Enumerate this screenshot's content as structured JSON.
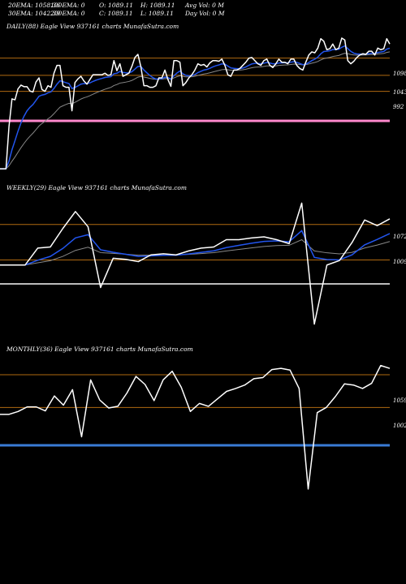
{
  "header": {
    "row1": [
      "20EMA: 1058.36",
      "100EMA: 0",
      "O: 1089.11",
      "H: 1089.11",
      "Avg Vol: 0  M"
    ],
    "row2": [
      "30EMA: 1042.39",
      "200EMA: 0",
      "C: 1089.11",
      "L: 1089.11",
      "Day Vol: 0  M"
    ]
  },
  "colors": {
    "background": "#000000",
    "price": "#ffffff",
    "ema_fast": "#2255ee",
    "ema_slow": "#888888",
    "level_line": "#b06a10",
    "daily_pink": "#ff88cc",
    "weekly_gray": "#bbbbbb",
    "monthly_blue": "#3a7bd5"
  },
  "chart_data": [
    {
      "type": "line",
      "title": "DAILY(88) Eagle  View  937161 charts MunafaSutra.com",
      "levels": [
        {
          "label": "1098",
          "value": 1098
        },
        {
          "label": "1043",
          "value": 1043
        },
        {
          "label": "992",
          "value": 992
        }
      ],
      "series": [
        {
          "role": "price",
          "values": [
            745,
            745,
            745,
            880,
            968,
            965,
            1000,
            1012,
            1007,
            1007,
            993,
            990,
            1022,
            1035,
            998,
            992,
            1010,
            1005,
            1050,
            1075,
            1075,
            1010,
            1005,
            1005,
            930,
            1020,
            1032,
            1040,
            1025,
            1015,
            1030,
            1045,
            1045,
            1045,
            1045,
            1050,
            1043,
            1045,
            1090,
            1058,
            1080,
            1040,
            1045,
            1050,
            1072,
            1100,
            1110,
            1070,
            1010,
            1010,
            1005,
            1005,
            1010,
            1035,
            1035,
            1060,
            1030,
            1008,
            1090,
            1090,
            1085,
            1010,
            1020,
            1035,
            1045,
            1060,
            1080,
            1075,
            1078,
            1070,
            1083,
            1090,
            1090,
            1088,
            1095,
            1075,
            1045,
            1040,
            1060,
            1060,
            1065,
            1075,
            1085,
            1098,
            1100,
            1090,
            1080,
            1075,
            1090,
            1095,
            1075,
            1068,
            1080,
            1095,
            1085,
            1085,
            1080,
            1095,
            1095,
            1075,
            1065,
            1060,
            1085,
            1108,
            1118,
            1115,
            1130,
            1160,
            1152,
            1125,
            1128,
            1143,
            1125,
            1130,
            1162,
            1156,
            1090,
            1080,
            1088,
            1100,
            1108,
            1112,
            1110,
            1120,
            1120,
            1108,
            1130,
            1125,
            1128,
            1160,
            1143
          ]
        }
      ]
    },
    {
      "type": "line",
      "title": "WEEKLY(29) Eagle  View  937161 charts MunafaSutra.com",
      "levels": [
        {
          "label": "1072",
          "value": 1072
        },
        {
          "label": "1009",
          "value": 1009
        }
      ],
      "series": [
        {
          "role": "price",
          "values": [
            1000,
            1000,
            1000,
            1030,
            1032,
            1065,
            1095,
            1068,
            960,
            1012,
            1010,
            1006,
            1018,
            1020,
            1018,
            1025,
            1030,
            1032,
            1045,
            1045,
            1048,
            1050,
            1045,
            1038,
            1110,
            895,
            1000,
            1008,
            1040,
            1080,
            1070,
            1082
          ]
        }
      ]
    },
    {
      "type": "line",
      "title": "MONTHLY(36) Eagle  View  937161 charts MunafaSutra.com",
      "levels": [
        {
          "label": "1059",
          "value": 1059
        },
        {
          "label": "1002",
          "value": 1002
        }
      ],
      "series": [
        {
          "role": "price",
          "values": [
            990,
            990,
            995,
            1003,
            1003,
            996,
            1022,
            1006,
            1033,
            951,
            1050,
            1015,
            1001,
            1004,
            1027,
            1056,
            1042,
            1014,
            1050,
            1065,
            1037,
            995,
            1009,
            1004,
            1017,
            1030,
            1035,
            1041,
            1052,
            1054,
            1068,
            1070,
            1067,
            1035,
            860,
            993,
            1002,
            1021,
            1043,
            1041,
            1035,
            1044,
            1075,
            1070
          ]
        }
      ]
    }
  ]
}
